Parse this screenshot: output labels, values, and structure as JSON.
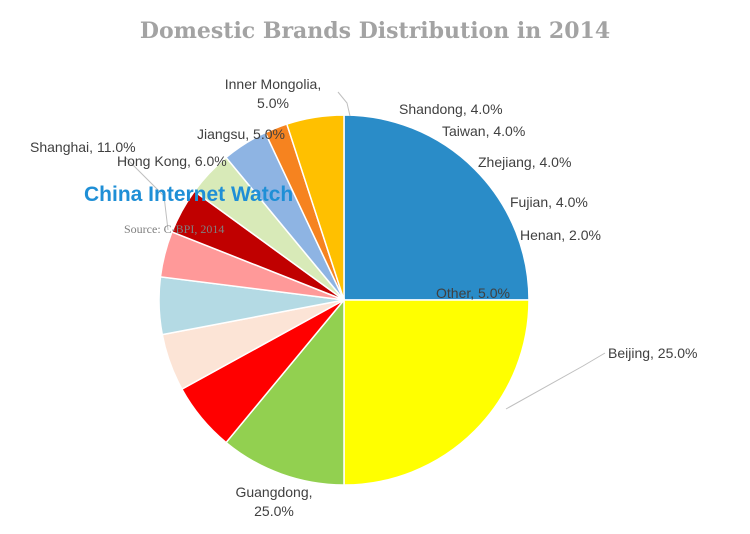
{
  "chart_data": {
    "type": "pie",
    "title": "Domestic Brands Distribution in 2014",
    "slices": [
      {
        "label": "Beijing",
        "value": 25.0,
        "value_text": "25.0%",
        "color": "#2a8cc8"
      },
      {
        "label": "Guangdong",
        "value": 25.0,
        "value_text": "25.0%",
        "color": "#ffff00"
      },
      {
        "label": "Shanghai",
        "value": 11.0,
        "value_text": "11.0%",
        "color": "#92d050"
      },
      {
        "label": "Hong Kong",
        "value": 6.0,
        "value_text": "6.0%",
        "color": "#ff0000"
      },
      {
        "label": "Jiangsu",
        "value": 5.0,
        "value_text": "5.0%",
        "color": "#fce4d6"
      },
      {
        "label": "Inner Mongolia",
        "value": 5.0,
        "value_text": "5.0%",
        "color": "#b4dae4"
      },
      {
        "label": "Shandong",
        "value": 4.0,
        "value_text": "4.0%",
        "color": "#ff9999"
      },
      {
        "label": "Taiwan",
        "value": 4.0,
        "value_text": "4.0%",
        "color": "#c00000"
      },
      {
        "label": "Zhejiang",
        "value": 4.0,
        "value_text": "4.0%",
        "color": "#d8eab8"
      },
      {
        "label": "Fujian",
        "value": 4.0,
        "value_text": "4.0%",
        "color": "#8eb4e3"
      },
      {
        "label": "Henan",
        "value": 2.0,
        "value_text": "2.0%",
        "color": "#f6831f"
      },
      {
        "label": "Other",
        "value": 5.0,
        "value_text": "5.0%",
        "color": "#ffc000"
      }
    ],
    "legend": "none"
  },
  "watermark": {
    "brand": "China Internet Watch",
    "source": "Source: C-BPI, 2014"
  }
}
